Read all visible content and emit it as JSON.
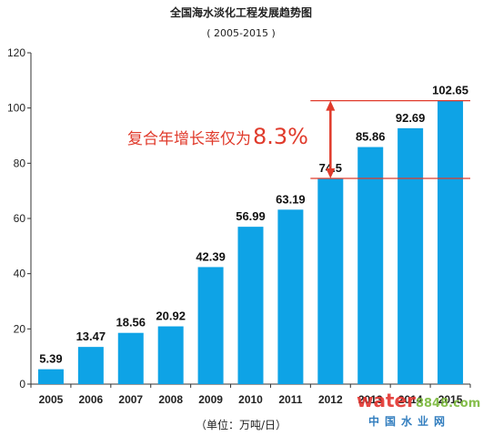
{
  "chart_data": {
    "type": "bar",
    "title": "全国海水淡化工程发展趋势图",
    "subtitle": "( 2005-2015 )",
    "unit_label": "（单位：万吨/日）",
    "categories": [
      "2005",
      "2006",
      "2007",
      "2008",
      "2009",
      "2010",
      "2011",
      "2012",
      "2013",
      "2014",
      "2015"
    ],
    "values": [
      5.39,
      13.47,
      18.56,
      20.92,
      42.39,
      56.99,
      63.19,
      74.5,
      85.86,
      92.69,
      102.65
    ],
    "value_labels": [
      "5.39",
      "13.47",
      "18.56",
      "20.92",
      "42.39",
      "56.99",
      "63.19",
      "74.5",
      "85.86",
      "92.69",
      "102.65"
    ],
    "ylim": [
      0,
      120
    ],
    "yticks": [
      0,
      20,
      40,
      60,
      80,
      100,
      120
    ],
    "grid": false,
    "bar_color": "#0ea3e6",
    "annotation": {
      "text_prefix": "复合年增长率仅为",
      "text_value": "8.3%",
      "color": "#e03a2b",
      "from_value": 74.5,
      "to_value": 102.65
    }
  },
  "watermark": {
    "brand_main": "water",
    "brand_digits": "8848",
    "brand_domain": ".com",
    "chinese_name": "中国水业网"
  }
}
